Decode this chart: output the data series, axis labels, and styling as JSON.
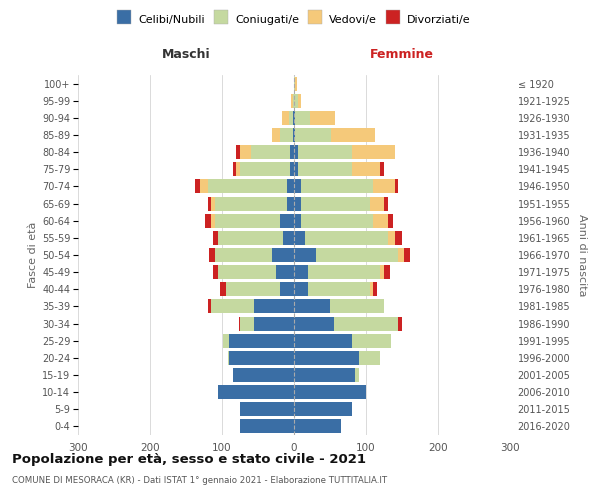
{
  "age_groups": [
    "0-4",
    "5-9",
    "10-14",
    "15-19",
    "20-24",
    "25-29",
    "30-34",
    "35-39",
    "40-44",
    "45-49",
    "50-54",
    "55-59",
    "60-64",
    "65-69",
    "70-74",
    "75-79",
    "80-84",
    "85-89",
    "90-94",
    "95-99",
    "100+"
  ],
  "birth_years": [
    "2016-2020",
    "2011-2015",
    "2006-2010",
    "2001-2005",
    "1996-2000",
    "1991-1995",
    "1986-1990",
    "1981-1985",
    "1976-1980",
    "1971-1975",
    "1966-1970",
    "1961-1965",
    "1956-1960",
    "1951-1955",
    "1946-1950",
    "1941-1945",
    "1936-1940",
    "1931-1935",
    "1926-1930",
    "1921-1925",
    "≤ 1920"
  ],
  "male": {
    "celibe": [
      75,
      75,
      105,
      85,
      90,
      90,
      55,
      55,
      20,
      25,
      30,
      15,
      20,
      10,
      10,
      5,
      5,
      2,
      2,
      0,
      0
    ],
    "coniugato": [
      0,
      0,
      0,
      0,
      2,
      8,
      20,
      60,
      75,
      80,
      80,
      90,
      90,
      100,
      110,
      70,
      55,
      18,
      5,
      2,
      0
    ],
    "vedovo": [
      0,
      0,
      0,
      0,
      0,
      0,
      0,
      0,
      0,
      0,
      0,
      0,
      5,
      5,
      10,
      5,
      15,
      10,
      10,
      2,
      0
    ],
    "divorziato": [
      0,
      0,
      0,
      0,
      0,
      0,
      2,
      5,
      8,
      8,
      8,
      8,
      8,
      5,
      8,
      5,
      5,
      0,
      0,
      0,
      0
    ]
  },
  "female": {
    "nubile": [
      65,
      80,
      100,
      85,
      90,
      80,
      55,
      50,
      20,
      20,
      30,
      15,
      10,
      10,
      10,
      5,
      5,
      2,
      2,
      0,
      0
    ],
    "coniugata": [
      0,
      0,
      0,
      5,
      30,
      55,
      90,
      75,
      85,
      100,
      115,
      115,
      100,
      95,
      100,
      75,
      75,
      50,
      20,
      5,
      2
    ],
    "vedova": [
      0,
      0,
      0,
      0,
      0,
      0,
      0,
      0,
      5,
      5,
      8,
      10,
      20,
      20,
      30,
      40,
      60,
      60,
      35,
      5,
      2
    ],
    "divorziata": [
      0,
      0,
      0,
      0,
      0,
      0,
      5,
      0,
      5,
      8,
      8,
      10,
      8,
      5,
      5,
      5,
      0,
      0,
      0,
      0,
      0
    ]
  },
  "colors": {
    "celibe": "#3a6ea5",
    "coniugato": "#c5d9a0",
    "vedovo": "#f5c97a",
    "divorziato": "#cc2222"
  },
  "legend_labels": [
    "Celibi/Nubili",
    "Coniugati/e",
    "Vedovi/e",
    "Divorziati/e"
  ],
  "legend_colors": [
    "#3a6ea5",
    "#c5d9a0",
    "#f5c97a",
    "#cc2222"
  ],
  "xlim": 300,
  "title": "Popolazione per età, sesso e stato civile - 2021",
  "subtitle": "COMUNE DI MESORACA (KR) - Dati ISTAT 1° gennaio 2021 - Elaborazione TUTTITALIA.IT",
  "xlabel_left": "Maschi",
  "xlabel_right": "Femmine",
  "ylabel_left": "Fasce di età",
  "ylabel_right": "Anni di nascita",
  "background_color": "#ffffff",
  "grid_color": "#cccccc"
}
